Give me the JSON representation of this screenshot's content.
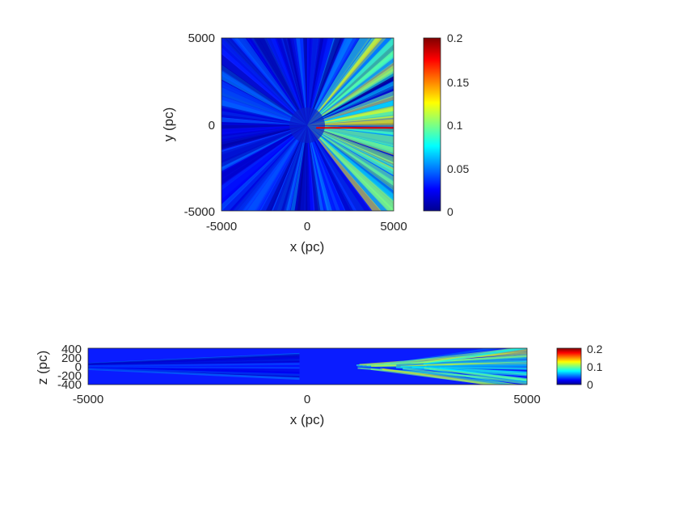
{
  "chart_data": [
    {
      "type": "heatmap",
      "xlabel": "x (pc)",
      "ylabel": "y (pc)",
      "xlim": [
        -5000,
        5000
      ],
      "ylim": [
        -5000,
        5000
      ],
      "xticks": [
        "-5000",
        "0",
        "5000"
      ],
      "yticks": [
        "5000",
        "0",
        "-5000"
      ],
      "colormap": "jet",
      "clim": [
        0,
        0.2
      ],
      "colorbar_ticks": [
        "0.2",
        "0.15",
        "0.1",
        "0.05",
        "0"
      ],
      "description_values": {
        "background_level": 0.01,
        "bright_wedge_level_right": 0.11,
        "peak_streak_level": 0.2,
        "peak_streak_y": -200,
        "peak_streak_x_range": [
          500,
          5000
        ]
      }
    },
    {
      "type": "heatmap",
      "xlabel": "x (pc)",
      "ylabel": "z (pc)",
      "xlim": [
        -5000,
        5000
      ],
      "ylim": [
        -400,
        400
      ],
      "xticks": [
        "-5000",
        "0",
        "5000"
      ],
      "yticks": [
        "400",
        "200",
        "0",
        "-200",
        "-400"
      ],
      "colormap": "jet",
      "clim": [
        0,
        0.2
      ],
      "colorbar_ticks": [
        "0.2",
        "0.1",
        "0"
      ],
      "description_values": {
        "background_level": 0.01,
        "upper_band_level": 0.1,
        "lower_band_level": 0.1,
        "band_start_x": 1000
      }
    }
  ],
  "colors": {
    "jet_low": "#00008f",
    "jet_mid": "#00ffff",
    "jet_high": "#800000",
    "axis": "#262626"
  }
}
